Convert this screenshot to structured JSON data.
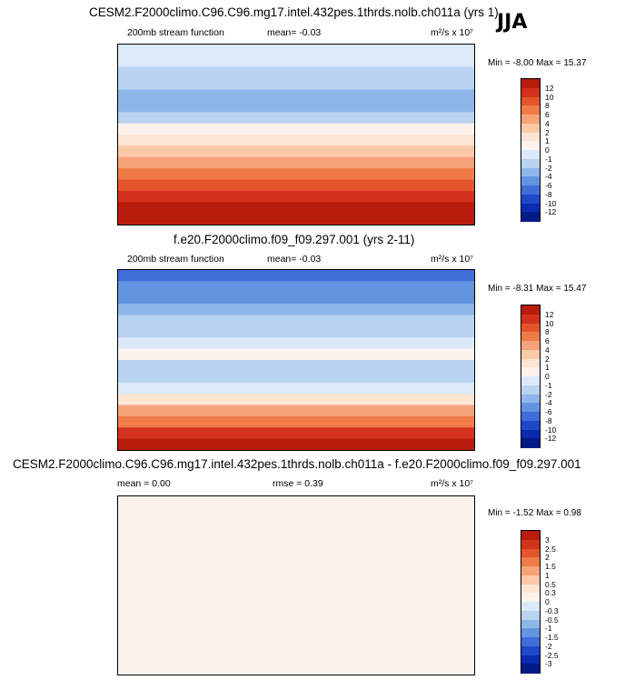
{
  "season": "JJA",
  "panels": [
    {
      "title": "CESM2.F2000climo.C96.C96.mg17.intel.432pes.1thrds.nolb.ch011a (yrs 1)",
      "left_label": "200mb stream function",
      "mid_label": "mean=  -0.03",
      "units": "m²/s x 10⁷",
      "minmax": "Min = -8.00 Max = 15.37"
    },
    {
      "title": "f.e20.F2000climo.f09_f09.297.001 (yrs 2-11)",
      "left_label": "200mb stream function",
      "mid_label": "mean=  -0.03",
      "units": "m²/s x 10⁷",
      "minmax": "Min = -8.31 Max = 15.47"
    },
    {
      "title": "CESM2.F2000climo.C96.C96.mg17.intel.432pes.1thrds.nolb.ch011a - f.e20.F2000climo.f09_f09.297.001",
      "left_label": "mean =  0.00",
      "mid_label": "rmse =  0.39",
      "units": "m²/s x 10⁷",
      "minmax": "Min = -1.52 Max =  0.98"
    }
  ],
  "chart_data": [
    {
      "type": "heatmap",
      "title": "CESM2.F2000climo.C96.C96.mg17.intel.432pes.1thrds.nolb.ch011a (yrs 1)",
      "variable": "200mb stream function",
      "mean": -0.03,
      "min": -8.0,
      "max": 15.37,
      "units": "m²/s x 10⁷",
      "levels": [
        "12",
        "10",
        "8",
        "6",
        "4",
        "2",
        "1",
        "0",
        "-1",
        "-2",
        "-4",
        "-6",
        "-8",
        "-10",
        "-12"
      ],
      "colors": [
        "#b71c0c",
        "#d2321b",
        "#e4552c",
        "#ef7b47",
        "#f7a37a",
        "#fcc9a8",
        "#fde5d3",
        "#fdf3ec",
        "#dce9f8",
        "#b9d3f1",
        "#8fb6ea",
        "#6493e0",
        "#3e6ed8",
        "#1f48c9",
        "#0a2bb0",
        "#001a86"
      ],
      "zonal_profile_band_index": [
        8,
        8,
        9,
        9,
        10,
        10,
        9,
        7,
        6,
        5,
        4,
        3,
        2,
        1,
        0,
        0
      ]
    },
    {
      "type": "heatmap",
      "title": "f.e20.F2000climo.f09_f09.297.001 (yrs 2-11)",
      "variable": "200mb stream function",
      "mean": -0.03,
      "min": -8.31,
      "max": 15.47,
      "units": "m²/s x 10⁷",
      "levels": [
        "12",
        "10",
        "8",
        "6",
        "4",
        "2",
        "1",
        "0",
        "-1",
        "-2",
        "-4",
        "-6",
        "-8",
        "-10",
        "-12"
      ],
      "colors": [
        "#b71c0c",
        "#d2321b",
        "#e4552c",
        "#ef7b47",
        "#f7a37a",
        "#fcc9a8",
        "#fde5d3",
        "#fdf3ec",
        "#dce9f8",
        "#b9d3f1",
        "#8fb6ea",
        "#6493e0",
        "#3e6ed8",
        "#1f48c9",
        "#0a2bb0",
        "#001a86"
      ],
      "zonal_profile_band_index": [
        12,
        11,
        11,
        10,
        9,
        9,
        8,
        7,
        9,
        9,
        8,
        6,
        4,
        3,
        1,
        0
      ]
    },
    {
      "type": "heatmap",
      "title": "CESM2.F2000climo.C96.C96.mg17.intel.432pes.1thrds.nolb.ch011a - f.e20.F2000climo.f09_f09.297.001",
      "variable": "difference",
      "mean": 0.0,
      "rmse": 0.39,
      "min": -1.52,
      "max": 0.98,
      "units": "m²/s x 10⁷",
      "levels": [
        "3",
        "2.5",
        "2",
        "1.5",
        "1",
        "0.5",
        "0.3",
        "0",
        "-0.3",
        "-0.5",
        "-1",
        "-1.5",
        "-2",
        "-2.5",
        "-3"
      ],
      "colors": [
        "#b71c0c",
        "#d2321b",
        "#e4552c",
        "#ef7b47",
        "#f7a37a",
        "#fcc9a8",
        "#fde5d3",
        "#fdf3ec",
        "#dce9f8",
        "#b9d3f1",
        "#8fb6ea",
        "#6493e0",
        "#3e6ed8",
        "#1f48c9",
        "#0a2bb0",
        "#001a86"
      ],
      "zonal_profile_band_index": [
        7,
        7,
        7,
        7,
        7,
        7,
        7,
        7,
        7,
        7,
        7,
        7,
        7,
        7,
        7,
        7
      ]
    }
  ]
}
